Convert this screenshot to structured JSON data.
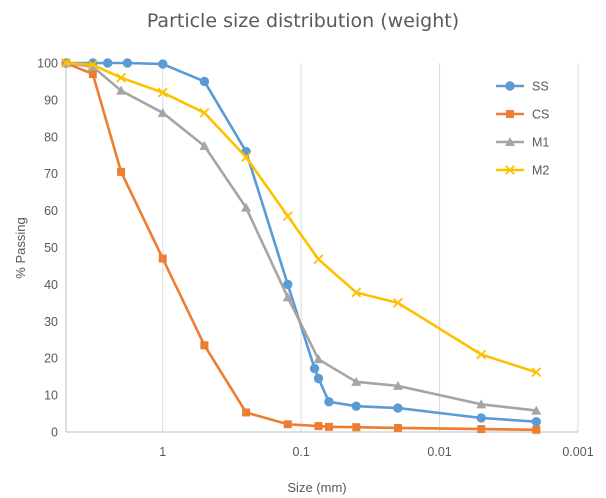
{
  "chart_data": {
    "type": "line",
    "title": "Particle size distribution (weight)",
    "xlabel": "Size (mm)",
    "ylabel": "% Passing",
    "x_scale": "log",
    "x_reversed": true,
    "xlim": [
      5,
      0.001
    ],
    "ylim": [
      0,
      100
    ],
    "x_ticks": [
      {
        "value": 1,
        "label": "1"
      },
      {
        "value": 0.1,
        "label": "0.1"
      },
      {
        "value": 0.01,
        "label": "0.01"
      },
      {
        "value": 0.001,
        "label": "0.001"
      }
    ],
    "y_ticks": [
      0,
      10,
      20,
      30,
      40,
      50,
      60,
      70,
      80,
      90,
      100
    ],
    "grid": {
      "vertical": true,
      "horizontal": false
    },
    "legend_position": "right",
    "series": [
      {
        "name": "SS",
        "color": "#5B9BD5",
        "marker": "circle",
        "points": [
          {
            "x": 5,
            "y": 100
          },
          {
            "x": 3.2,
            "y": 100
          },
          {
            "x": 2.5,
            "y": 100
          },
          {
            "x": 1.8,
            "y": 100
          },
          {
            "x": 1,
            "y": 99.7
          },
          {
            "x": 0.5,
            "y": 95
          },
          {
            "x": 0.25,
            "y": 76
          },
          {
            "x": 0.125,
            "y": 40
          },
          {
            "x": 0.08,
            "y": 17.2
          },
          {
            "x": 0.075,
            "y": 14.5
          },
          {
            "x": 0.063,
            "y": 8.2
          },
          {
            "x": 0.04,
            "y": 7
          },
          {
            "x": 0.02,
            "y": 6.5
          },
          {
            "x": 0.005,
            "y": 3.8
          },
          {
            "x": 0.002,
            "y": 2.8
          }
        ]
      },
      {
        "name": "CS",
        "color": "#ED7D31",
        "marker": "square",
        "points": [
          {
            "x": 5,
            "y": 100
          },
          {
            "x": 3.2,
            "y": 97
          },
          {
            "x": 2,
            "y": 70.5
          },
          {
            "x": 1,
            "y": 47
          },
          {
            "x": 0.5,
            "y": 23.5
          },
          {
            "x": 0.25,
            "y": 5.3
          },
          {
            "x": 0.125,
            "y": 2.1
          },
          {
            "x": 0.075,
            "y": 1.6
          },
          {
            "x": 0.063,
            "y": 1.4
          },
          {
            "x": 0.04,
            "y": 1.3
          },
          {
            "x": 0.02,
            "y": 1.1
          },
          {
            "x": 0.005,
            "y": 0.8
          },
          {
            "x": 0.002,
            "y": 0.6
          }
        ]
      },
      {
        "name": "M1",
        "color": "#A5A5A5",
        "marker": "triangle",
        "points": [
          {
            "x": 5,
            "y": 100
          },
          {
            "x": 3.2,
            "y": 99
          },
          {
            "x": 2,
            "y": 92.5
          },
          {
            "x": 1,
            "y": 86.5
          },
          {
            "x": 0.5,
            "y": 77.5
          },
          {
            "x": 0.25,
            "y": 60.8
          },
          {
            "x": 0.125,
            "y": 36.5
          },
          {
            "x": 0.075,
            "y": 19.7
          },
          {
            "x": 0.04,
            "y": 13.6
          },
          {
            "x": 0.02,
            "y": 12.5
          },
          {
            "x": 0.005,
            "y": 7.5
          },
          {
            "x": 0.002,
            "y": 5.8
          }
        ]
      },
      {
        "name": "M2",
        "color": "#FFC000",
        "marker": "x",
        "points": [
          {
            "x": 5,
            "y": 100
          },
          {
            "x": 3.2,
            "y": 99.5
          },
          {
            "x": 2,
            "y": 96
          },
          {
            "x": 1,
            "y": 92
          },
          {
            "x": 0.5,
            "y": 86.5
          },
          {
            "x": 0.25,
            "y": 74.5
          },
          {
            "x": 0.125,
            "y": 58.5
          },
          {
            "x": 0.075,
            "y": 46.8
          },
          {
            "x": 0.04,
            "y": 37.8
          },
          {
            "x": 0.02,
            "y": 35
          },
          {
            "x": 0.005,
            "y": 21
          },
          {
            "x": 0.002,
            "y": 16.2
          }
        ]
      }
    ]
  }
}
